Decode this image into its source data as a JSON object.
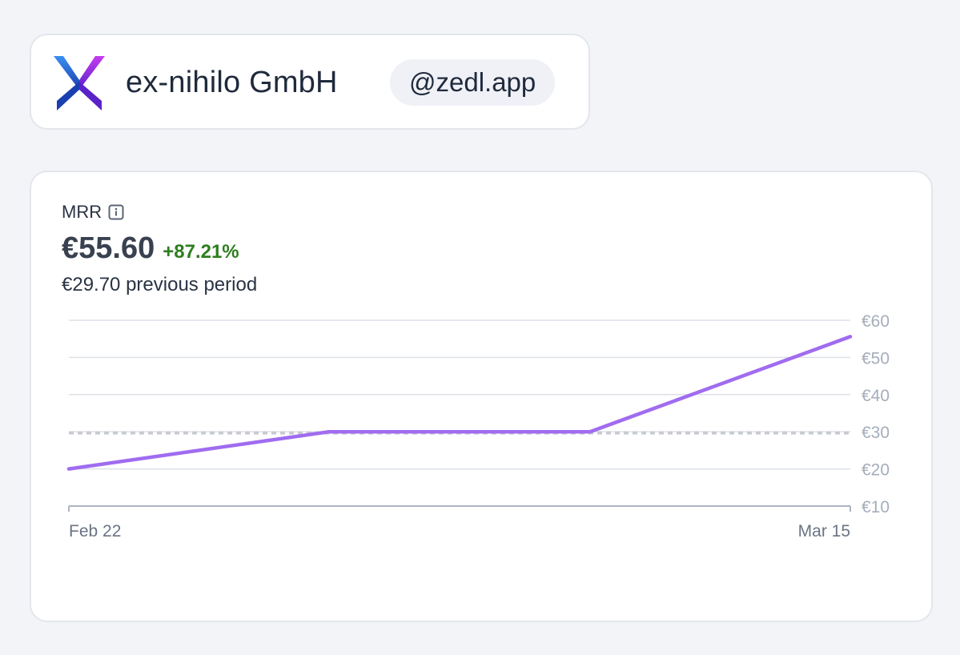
{
  "company": {
    "name": "ex-nihilo GmbH",
    "handle": "@zedl.app",
    "logo_icon": "ex-nihilo-logo-icon"
  },
  "metric": {
    "label": "MRR",
    "info_icon": "info-icon",
    "value": "€55.60",
    "change": "+87.21%",
    "previous_text": "€29.70 previous period"
  },
  "colors": {
    "line": "#a06cf0",
    "previous_line": "#c8cbd2",
    "change_positive": "#2e7d1f",
    "grid": "#dde1e8",
    "axis_text": "#a5adbb"
  },
  "chart_data": {
    "type": "line",
    "title": "MRR",
    "xlabel": "",
    "ylabel": "",
    "x_ticks": [
      "Feb 22",
      "Mar 15"
    ],
    "y_ticks": [
      "€60",
      "€50",
      "€40",
      "€30",
      "€20",
      "€10"
    ],
    "ylim": [
      10,
      60
    ],
    "grid": true,
    "series": [
      {
        "values": [
          {
            "x": 0,
            "y": 20
          },
          {
            "x": 0.333,
            "y": 30
          },
          {
            "x": 0.667,
            "y": 30
          },
          {
            "x": 1,
            "y": 55.6
          }
        ]
      }
    ],
    "reference_line": {
      "value": 29.7
    }
  }
}
